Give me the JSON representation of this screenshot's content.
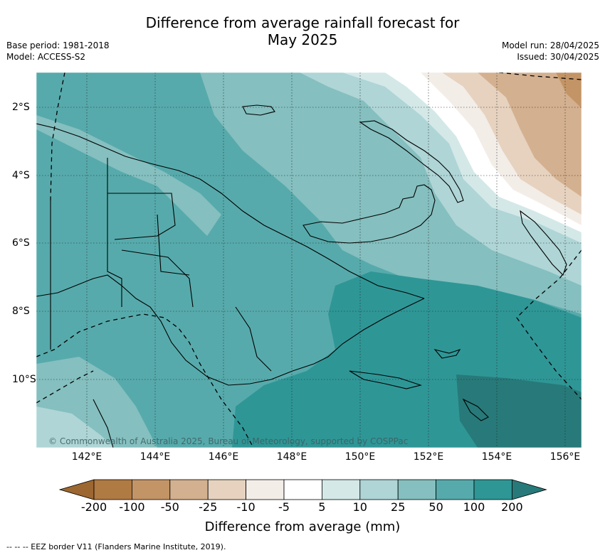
{
  "title_line1": "Difference from average rainfall forecast for",
  "title_line2": "May 2025",
  "meta": {
    "base_period": "Base period: 1981-2018",
    "model": "Model: ACCESS-S2",
    "model_run": "Model run: 28/04/2025",
    "issued": "Issued: 30/04/2025"
  },
  "map": {
    "lon_labels": [
      "142°E",
      "144°E",
      "146°E",
      "148°E",
      "150°E",
      "152°E",
      "154°E",
      "156°E"
    ],
    "lat_labels": [
      "2°S",
      "4°S",
      "6°S",
      "8°S",
      "10°S"
    ],
    "credit": "© Commonwealth of Australia 2025, Bureau of Meteorology, supported by COSPPac"
  },
  "colorbar": {
    "label": "Difference from average (mm)",
    "ticks": [
      "-200",
      "-100",
      "-50",
      "-25",
      "-10",
      "-5",
      "5",
      "10",
      "25",
      "50",
      "100",
      "200"
    ],
    "colors": [
      "#9c6730",
      "#b07a43",
      "#c39465",
      "#d3b08f",
      "#e6d2bf",
      "#f3ede8",
      "#ffffff",
      "#d4e8e8",
      "#afd5d6",
      "#85bfbf",
      "#57aaab",
      "#2f9696",
      "#277a79"
    ]
  },
  "footnote": "-- -- -- EEZ border V11 (Flanders Marine Institute, 2019)."
}
